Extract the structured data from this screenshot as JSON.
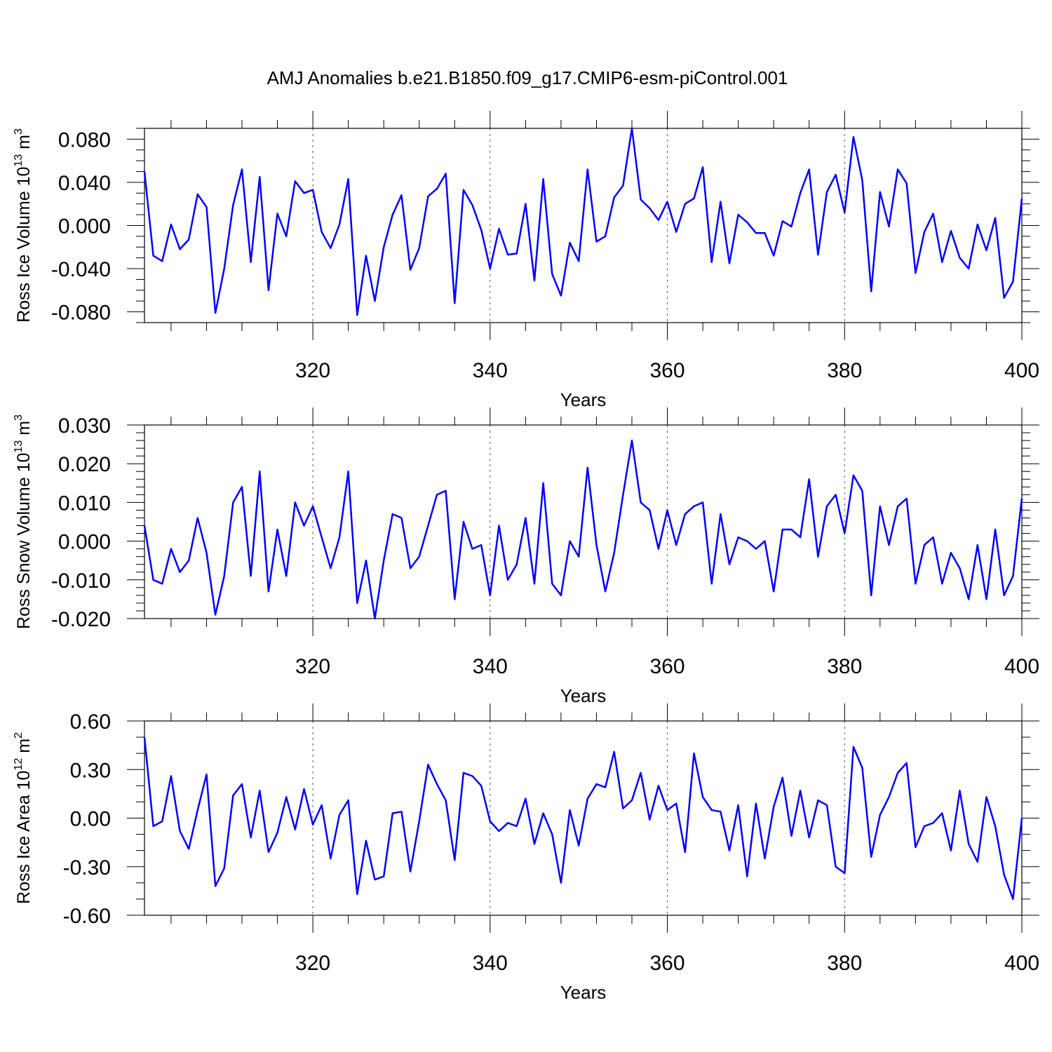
{
  "title": "AMJ Anomalies b.e21.B1850.f09_g17.CMIP6-esm-piControl.001",
  "colors": {
    "line": "#0000ff",
    "axes": "#000000",
    "grid": "#555555",
    "background": "#ffffff"
  },
  "chart_data": [
    {
      "type": "line",
      "title": "AMJ Anomalies b.e21.B1850.f09_g17.CMIP6-esm-piControl.001",
      "xlabel": "Years",
      "ylabel": {
        "prefix": "Ross Ice Volume 10",
        "exponent": "13",
        "suffix": " m",
        "unit_exponent": "3"
      },
      "xlim": [
        301,
        400
      ],
      "ylim": [
        -0.09,
        0.09
      ],
      "x_ticks": [
        320,
        340,
        360,
        380,
        400
      ],
      "x_tick_labels": [
        "320",
        "340",
        "360",
        "380",
        "400"
      ],
      "y_ticks": [
        -0.08,
        -0.04,
        0.0,
        0.04,
        0.08
      ],
      "y_tick_labels": [
        "-0.080",
        "-0.040",
        "0.000",
        "0.040",
        "0.080"
      ],
      "y_minor_step": 0.01,
      "x_minor_step": 4,
      "grid": "vertical dashed at major x ticks",
      "x_start": 301,
      "values": [
        0.05,
        -0.028,
        -0.033,
        0.001,
        -0.022,
        -0.013,
        0.029,
        0.017,
        -0.081,
        -0.04,
        0.019,
        0.052,
        -0.034,
        0.045,
        -0.06,
        0.011,
        -0.01,
        0.041,
        0.03,
        0.033,
        -0.006,
        -0.021,
        0.001,
        0.043,
        -0.083,
        -0.028,
        -0.07,
        -0.02,
        0.01,
        0.028,
        -0.041,
        -0.021,
        0.027,
        0.034,
        0.048,
        -0.072,
        0.033,
        0.019,
        -0.004,
        -0.04,
        -0.003,
        -0.027,
        -0.026,
        0.02,
        -0.051,
        0.043,
        -0.045,
        -0.065,
        -0.016,
        -0.033,
        0.052,
        -0.015,
        -0.01,
        0.026,
        0.037,
        0.09,
        0.024,
        0.016,
        0.005,
        0.022,
        -0.006,
        0.02,
        0.025,
        0.054,
        -0.034,
        0.022,
        -0.035,
        0.01,
        0.003,
        -0.007,
        -0.007,
        -0.028,
        0.004,
        -0.001,
        0.03,
        0.052,
        -0.027,
        0.031,
        0.047,
        0.012,
        0.082,
        0.042,
        -0.061,
        0.031,
        -0.001,
        0.052,
        0.039,
        -0.044,
        -0.006,
        0.011,
        -0.034,
        -0.005,
        -0.03,
        -0.04,
        0.001,
        -0.023,
        0.007,
        -0.067,
        -0.052,
        0.025
      ]
    },
    {
      "type": "line",
      "xlabel": "Years",
      "ylabel": {
        "prefix": "Ross Snow Volume 10",
        "exponent": "13",
        "suffix": " m",
        "unit_exponent": "3"
      },
      "xlim": [
        301,
        400
      ],
      "ylim": [
        -0.02,
        0.03
      ],
      "x_ticks": [
        320,
        340,
        360,
        380,
        400
      ],
      "x_tick_labels": [
        "320",
        "340",
        "360",
        "380",
        "400"
      ],
      "y_ticks": [
        -0.02,
        -0.01,
        0.0,
        0.01,
        0.02,
        0.03
      ],
      "y_tick_labels": [
        "-0.020",
        "-0.010",
        "0.000",
        "0.010",
        "0.020",
        "0.030"
      ],
      "y_minor_step": 0.002,
      "x_minor_step": 4,
      "grid": "vertical dashed at major x ticks",
      "x_start": 301,
      "values": [
        0.004,
        -0.01,
        -0.011,
        -0.002,
        -0.008,
        -0.005,
        0.006,
        -0.003,
        -0.019,
        -0.009,
        0.01,
        0.014,
        -0.009,
        0.018,
        -0.013,
        0.003,
        -0.009,
        0.01,
        0.004,
        0.009,
        0.001,
        -0.007,
        0.001,
        0.018,
        -0.016,
        -0.005,
        -0.02,
        -0.005,
        0.007,
        0.006,
        -0.007,
        -0.004,
        0.004,
        0.012,
        0.013,
        -0.015,
        0.005,
        -0.002,
        -0.001,
        -0.014,
        0.004,
        -0.01,
        -0.006,
        0.006,
        -0.011,
        0.015,
        -0.011,
        -0.014,
        0.0,
        -0.004,
        0.019,
        -0.001,
        -0.013,
        -0.003,
        0.012,
        0.026,
        0.01,
        0.008,
        -0.002,
        0.008,
        -0.001,
        0.007,
        0.009,
        0.01,
        -0.011,
        0.007,
        -0.006,
        0.001,
        0.0,
        -0.002,
        0.0,
        -0.013,
        0.003,
        0.003,
        0.001,
        0.016,
        -0.004,
        0.009,
        0.012,
        0.002,
        0.017,
        0.013,
        -0.014,
        0.009,
        -0.001,
        0.009,
        0.011,
        -0.011,
        -0.001,
        0.001,
        -0.011,
        -0.003,
        -0.007,
        -0.015,
        -0.001,
        -0.015,
        0.003,
        -0.014,
        -0.009,
        0.011
      ]
    },
    {
      "type": "line",
      "xlabel": "Years",
      "ylabel": {
        "prefix": "Ross Ice Area 10",
        "exponent": "12",
        "suffix": " m",
        "unit_exponent": "2"
      },
      "xlim": [
        301,
        400
      ],
      "ylim": [
        -0.6,
        0.6
      ],
      "x_ticks": [
        320,
        340,
        360,
        380,
        400
      ],
      "x_tick_labels": [
        "320",
        "340",
        "360",
        "380",
        "400"
      ],
      "y_ticks": [
        -0.6,
        -0.3,
        0.0,
        0.3,
        0.6
      ],
      "y_tick_labels": [
        "-0.60",
        "-0.30",
        "0.00",
        "0.30",
        "0.60"
      ],
      "y_minor_step": 0.1,
      "x_minor_step": 4,
      "grid": "vertical dashed at major x ticks",
      "x_start": 301,
      "values": [
        0.5,
        -0.05,
        -0.02,
        0.26,
        -0.08,
        -0.19,
        0.05,
        0.27,
        -0.42,
        -0.31,
        0.14,
        0.21,
        -0.12,
        0.17,
        -0.21,
        -0.09,
        0.13,
        -0.07,
        0.18,
        -0.04,
        0.08,
        -0.25,
        0.02,
        0.11,
        -0.47,
        -0.14,
        -0.38,
        -0.36,
        0.03,
        0.04,
        -0.33,
        -0.02,
        0.33,
        0.21,
        0.11,
        -0.26,
        0.28,
        0.26,
        0.2,
        -0.02,
        -0.08,
        -0.03,
        -0.05,
        0.12,
        -0.16,
        0.03,
        -0.1,
        -0.4,
        0.05,
        -0.17,
        0.12,
        0.21,
        0.19,
        0.41,
        0.06,
        0.11,
        0.28,
        -0.01,
        0.2,
        0.05,
        0.09,
        -0.21,
        0.4,
        0.13,
        0.05,
        0.04,
        -0.2,
        0.08,
        -0.36,
        0.09,
        -0.25,
        0.07,
        0.25,
        -0.11,
        0.17,
        -0.12,
        0.11,
        0.08,
        -0.3,
        -0.34,
        0.44,
        0.31,
        -0.24,
        0.02,
        0.13,
        0.28,
        0.34,
        -0.18,
        -0.05,
        -0.03,
        0.03,
        -0.2,
        0.17,
        -0.16,
        -0.27,
        0.13,
        -0.05,
        -0.35,
        -0.5,
        0.0
      ]
    }
  ]
}
